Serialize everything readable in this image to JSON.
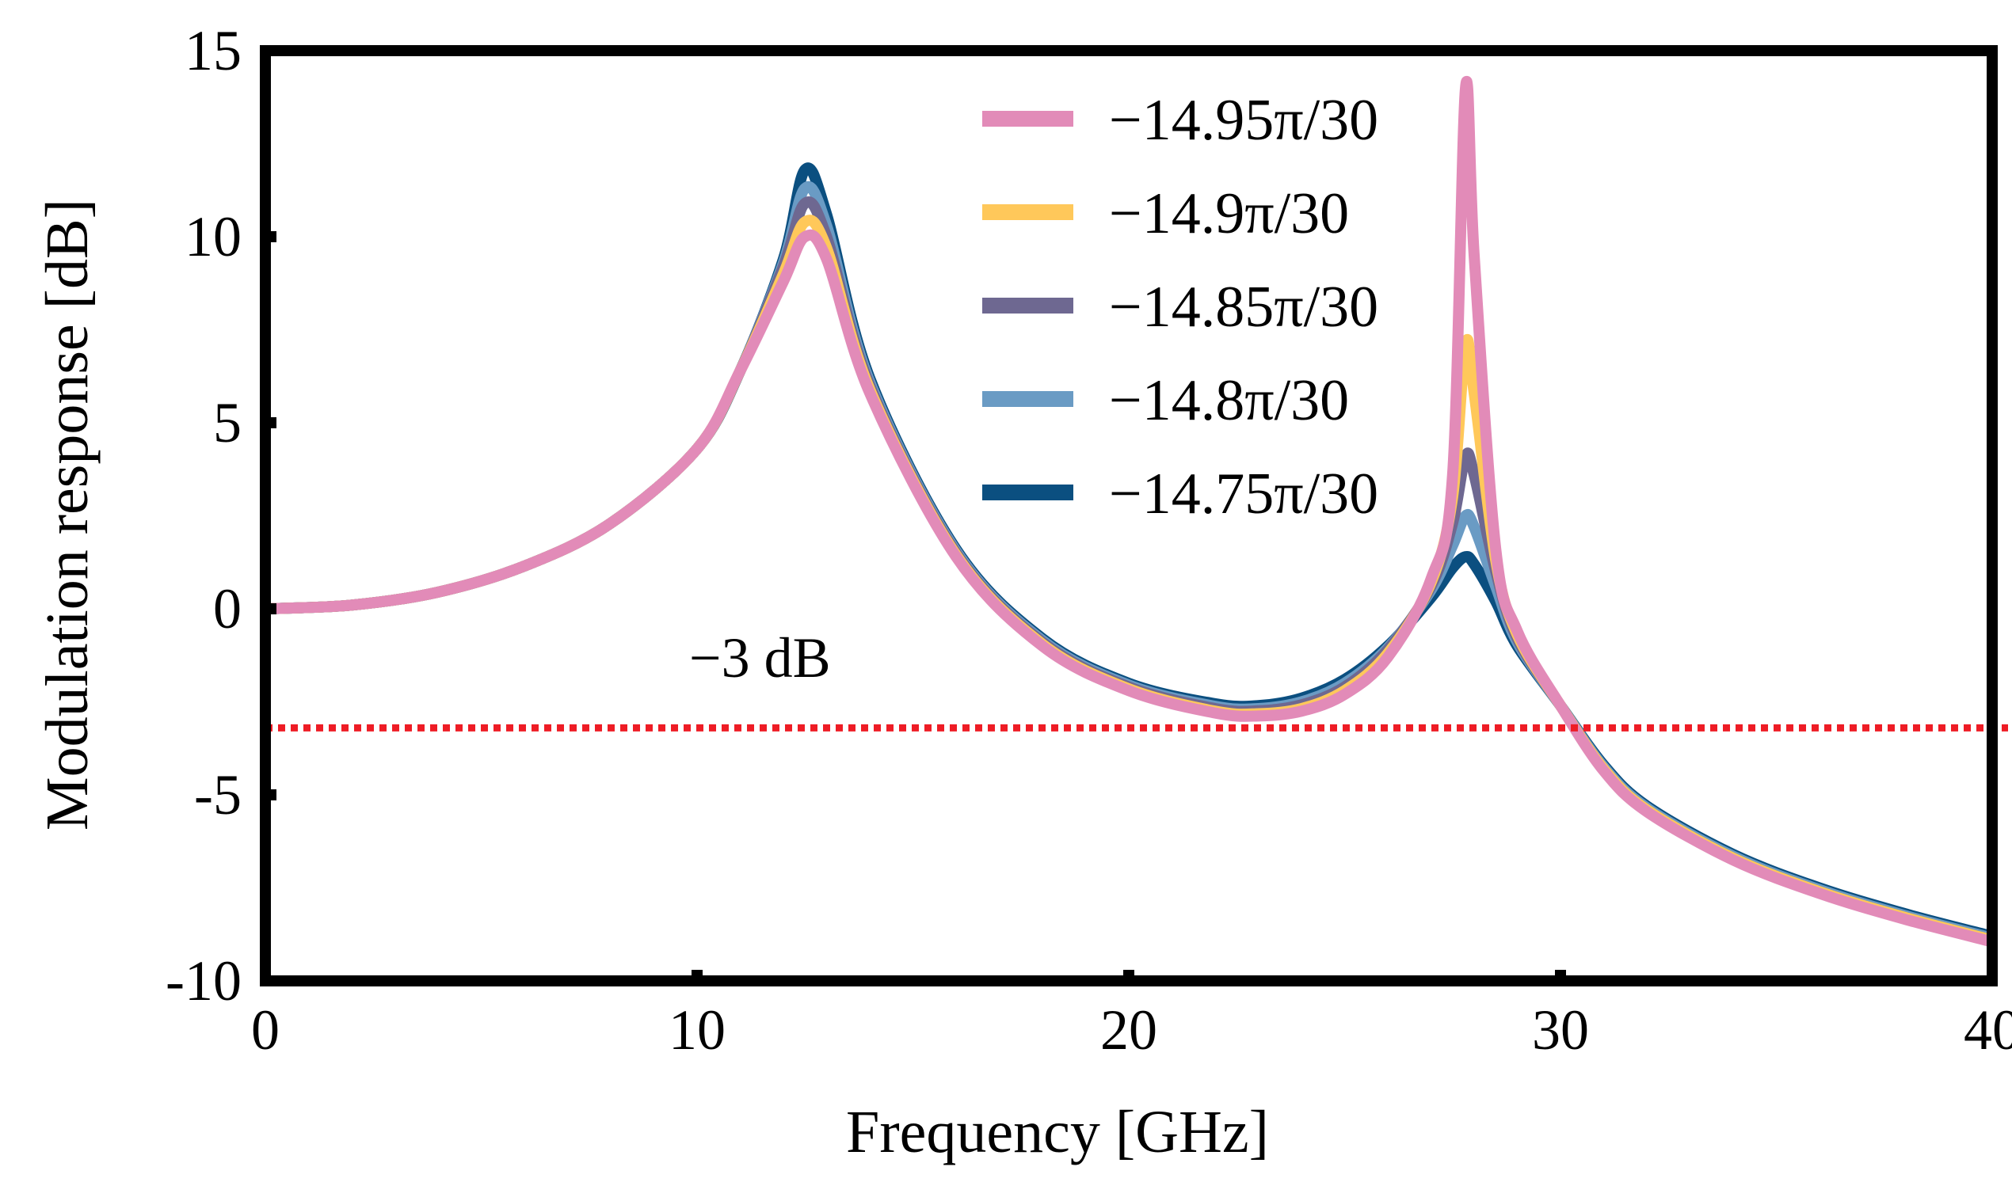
{
  "chart_data": {
    "type": "line",
    "title": "",
    "xlabel": "Frequency [GHz]",
    "ylabel": "Modulation response [dB]",
    "xlim": [
      0,
      40
    ],
    "ylim": [
      -10,
      15
    ],
    "xticks": [
      "0",
      "10",
      "20",
      "30",
      "40"
    ],
    "xtick_values": [
      0,
      10,
      20,
      30,
      40
    ],
    "yticks": [
      "15",
      "10",
      "5",
      "0",
      "-5",
      "-10"
    ],
    "ytick_values": [
      15,
      10,
      5,
      0,
      -5,
      -10
    ],
    "legend_position": "top-right",
    "threshold": {
      "value": -3.2,
      "label": "−3 dB",
      "color": "#ee1c25",
      "style": "dotted"
    },
    "series": [
      {
        "name": "−14.75π/30",
        "color": "#0b4f80",
        "x": [
          0,
          2,
          4,
          6,
          8,
          10,
          11,
          12,
          12.5,
          13,
          14,
          16,
          18,
          20,
          22,
          23,
          24,
          25,
          26,
          27,
          27.5,
          27.8,
          28,
          28.5,
          29,
          30,
          31,
          32,
          34,
          36,
          38,
          40
        ],
        "y": [
          0,
          0.1,
          0.45,
          1.15,
          2.3,
          4.3,
          6.4,
          9.4,
          11.8,
          10.6,
          6.2,
          1.6,
          -0.8,
          -2.0,
          -2.55,
          -2.6,
          -2.4,
          -1.9,
          -1.0,
          0.3,
          1.1,
          1.4,
          1.2,
          0.2,
          -1.0,
          -2.6,
          -4.2,
          -5.3,
          -6.6,
          -7.5,
          -8.2,
          -8.8
        ]
      },
      {
        "name": "−14.8π/30",
        "color": "#6a9bc4",
        "x": [
          0,
          2,
          4,
          6,
          8,
          10,
          11,
          12,
          12.5,
          13,
          14,
          16,
          18,
          20,
          22,
          23,
          24,
          25,
          26,
          27,
          27.5,
          27.8,
          28,
          28.5,
          29,
          30,
          31,
          32,
          34,
          36,
          38,
          40
        ],
        "y": [
          0,
          0.1,
          0.45,
          1.15,
          2.3,
          4.3,
          6.4,
          9.3,
          11.3,
          10.3,
          6.1,
          1.55,
          -0.85,
          -2.05,
          -2.62,
          -2.68,
          -2.5,
          -2.0,
          -1.05,
          0.5,
          1.7,
          2.5,
          2.2,
          0.6,
          -0.9,
          -2.6,
          -4.25,
          -5.35,
          -6.65,
          -7.55,
          -8.25,
          -8.85
        ]
      },
      {
        "name": "−14.85π/30",
        "color": "#6e6891",
        "x": [
          0,
          2,
          4,
          6,
          8,
          10,
          11,
          12,
          12.5,
          13,
          14,
          16,
          18,
          20,
          22,
          23,
          24,
          25,
          26,
          27,
          27.5,
          27.8,
          28,
          28.5,
          29,
          30,
          31,
          32,
          34,
          36,
          38,
          40
        ],
        "y": [
          0,
          0.1,
          0.45,
          1.15,
          2.3,
          4.3,
          6.4,
          9.2,
          10.9,
          10.0,
          6.0,
          1.5,
          -0.9,
          -2.1,
          -2.68,
          -2.74,
          -2.58,
          -2.1,
          -1.1,
          0.6,
          2.3,
          4.1,
          3.6,
          1.0,
          -0.8,
          -2.6,
          -4.3,
          -5.4,
          -6.7,
          -7.6,
          -8.3,
          -8.9
        ]
      },
      {
        "name": "−14.9π/30",
        "color": "#ffc85a",
        "x": [
          0,
          2,
          4,
          6,
          8,
          10,
          11,
          12,
          12.5,
          13,
          14,
          16,
          18,
          20,
          22,
          23,
          24,
          25,
          26,
          27,
          27.5,
          27.8,
          28,
          28.5,
          29,
          30,
          31,
          32,
          34,
          36,
          38,
          40
        ],
        "y": [
          0,
          0.1,
          0.45,
          1.15,
          2.3,
          4.3,
          6.4,
          9.0,
          10.4,
          9.7,
          5.9,
          1.45,
          -0.95,
          -2.15,
          -2.75,
          -2.82,
          -2.68,
          -2.2,
          -1.2,
          0.7,
          3.0,
          7.1,
          5.8,
          1.3,
          -0.7,
          -2.6,
          -4.3,
          -5.4,
          -6.7,
          -7.6,
          -8.3,
          -8.9
        ]
      },
      {
        "name": "−14.95π/30",
        "color": "#e28bb8",
        "x": [
          0,
          2,
          4,
          6,
          8,
          10,
          11,
          12,
          12.5,
          13,
          14,
          16,
          18,
          20,
          22,
          23,
          24,
          25,
          26,
          27,
          27.5,
          27.8,
          28,
          28.5,
          29,
          30,
          31,
          32,
          34,
          36,
          38,
          40
        ],
        "y": [
          0,
          0.1,
          0.45,
          1.15,
          2.3,
          4.3,
          6.4,
          8.8,
          10.0,
          9.4,
          5.8,
          1.4,
          -1.0,
          -2.2,
          -2.8,
          -2.88,
          -2.75,
          -2.3,
          -1.3,
          0.8,
          3.6,
          14.0,
          9.5,
          1.6,
          -0.6,
          -2.6,
          -4.35,
          -5.45,
          -6.75,
          -7.65,
          -8.35,
          -8.95
        ]
      }
    ],
    "legend_order": [
      "−14.95π/30",
      "−14.9π/30",
      "−14.85π/30",
      "−14.8π/30",
      "−14.75π/30"
    ]
  }
}
